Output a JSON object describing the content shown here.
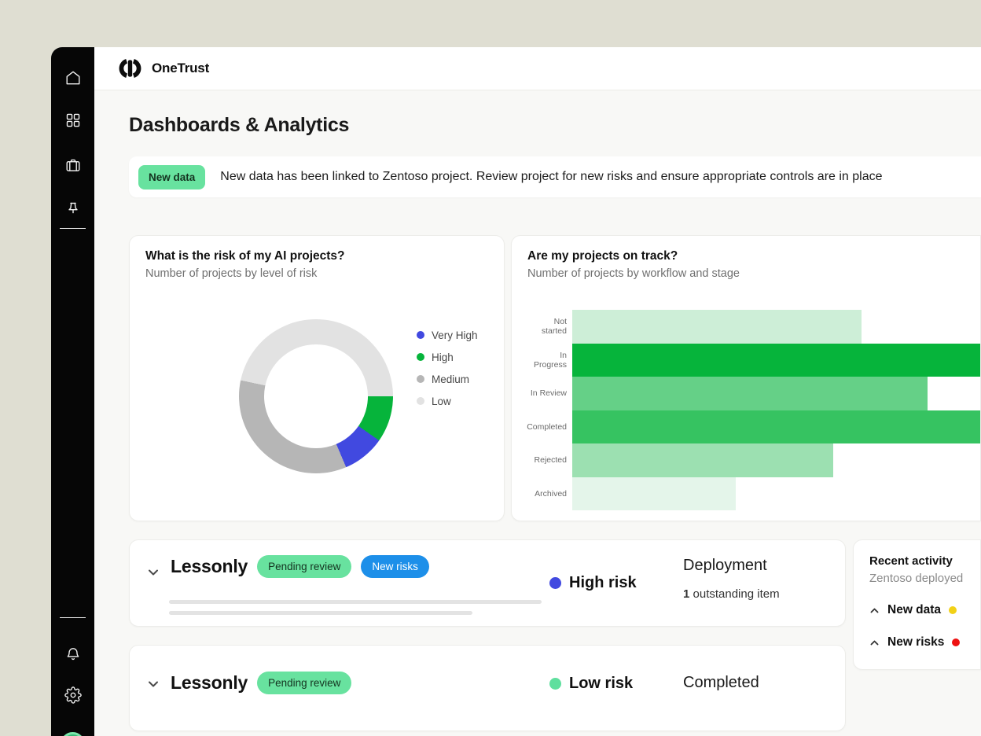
{
  "app": {
    "brand": "OneTrust"
  },
  "page": {
    "title": "Dashboards & Analytics"
  },
  "banner": {
    "badge": "New data",
    "message": "New data has been linked to Zentoso project. Review project for new risks and ensure appropriate controls are in place"
  },
  "sidebar": {
    "top_icons": [
      "home",
      "apps-grid",
      "projects-briefcase",
      "pinned"
    ],
    "bottom_icons": [
      "notifications-bell",
      "settings-gear"
    ]
  },
  "chart_data": [
    {
      "type": "donut",
      "title": "What is the risk of my AI projects?",
      "subtitle": "Number of projects by level of risk",
      "legend_position": "right",
      "start_deg": 282,
      "segments": [
        {
          "label": "Low",
          "percent": 47,
          "sweep_deg": 168,
          "color": "#e2e2e2"
        },
        {
          "label": "High",
          "percent": 10,
          "sweep_deg": 35,
          "color": "#06b43b"
        },
        {
          "label": "Very High",
          "percent": 9,
          "sweep_deg": 32,
          "color": "#4149e0"
        },
        {
          "label": "Medium",
          "percent": 34,
          "sweep_deg": 125,
          "color": "#b6b6b6"
        }
      ],
      "legend_order": [
        "Very High",
        "High",
        "Medium",
        "Low"
      ]
    },
    {
      "type": "bar",
      "orientation": "horizontal",
      "title": "Are my projects on track?",
      "subtitle": "Number of projects by workflow and stage",
      "categories": [
        "Not started",
        "In Progress",
        "In Review",
        "Completed",
        "Rejected",
        "Archived"
      ],
      "values_pct_of_plot_width": [
        71,
        100,
        87,
        100,
        64,
        40
      ],
      "clipped_at_right_edge": [
        "In Progress",
        "Completed"
      ],
      "colors": [
        "#cdeed7",
        "#06b43b",
        "#65d087",
        "#36c361",
        "#9ce0b1",
        "#e4f5ea"
      ],
      "axis_ticks_visible": false,
      "grid": false
    }
  ],
  "projects": [
    {
      "name": "Lessonly",
      "status_badge": "Pending review",
      "extra_badge": "New risks",
      "risk_label": "High risk",
      "risk_color": "#4149e0",
      "stage_title": "Deployment",
      "stage_note_strong": "1",
      "stage_note_rest": " outstanding item"
    },
    {
      "name": "Lessonly",
      "status_badge": "Pending review",
      "risk_label": "Low risk",
      "risk_color": "#5fdf9e",
      "stage_title": "Completed"
    }
  ],
  "recent_activity": {
    "title": "Recent activity",
    "subtitle": "Zentoso deployed",
    "items": [
      {
        "label": "New data",
        "dot_color": "#f2d117"
      },
      {
        "label": "New risks",
        "dot_color": "#ee1111"
      }
    ]
  },
  "colors": {
    "outer_background": "#dfded2",
    "sidebar": "#060606",
    "content_background": "#f8f8f6",
    "accent_green": "#06b43b",
    "accent_blue": "#4149e0",
    "badge_green": "#68e29f",
    "badge_blue": "#1d8fe9"
  }
}
